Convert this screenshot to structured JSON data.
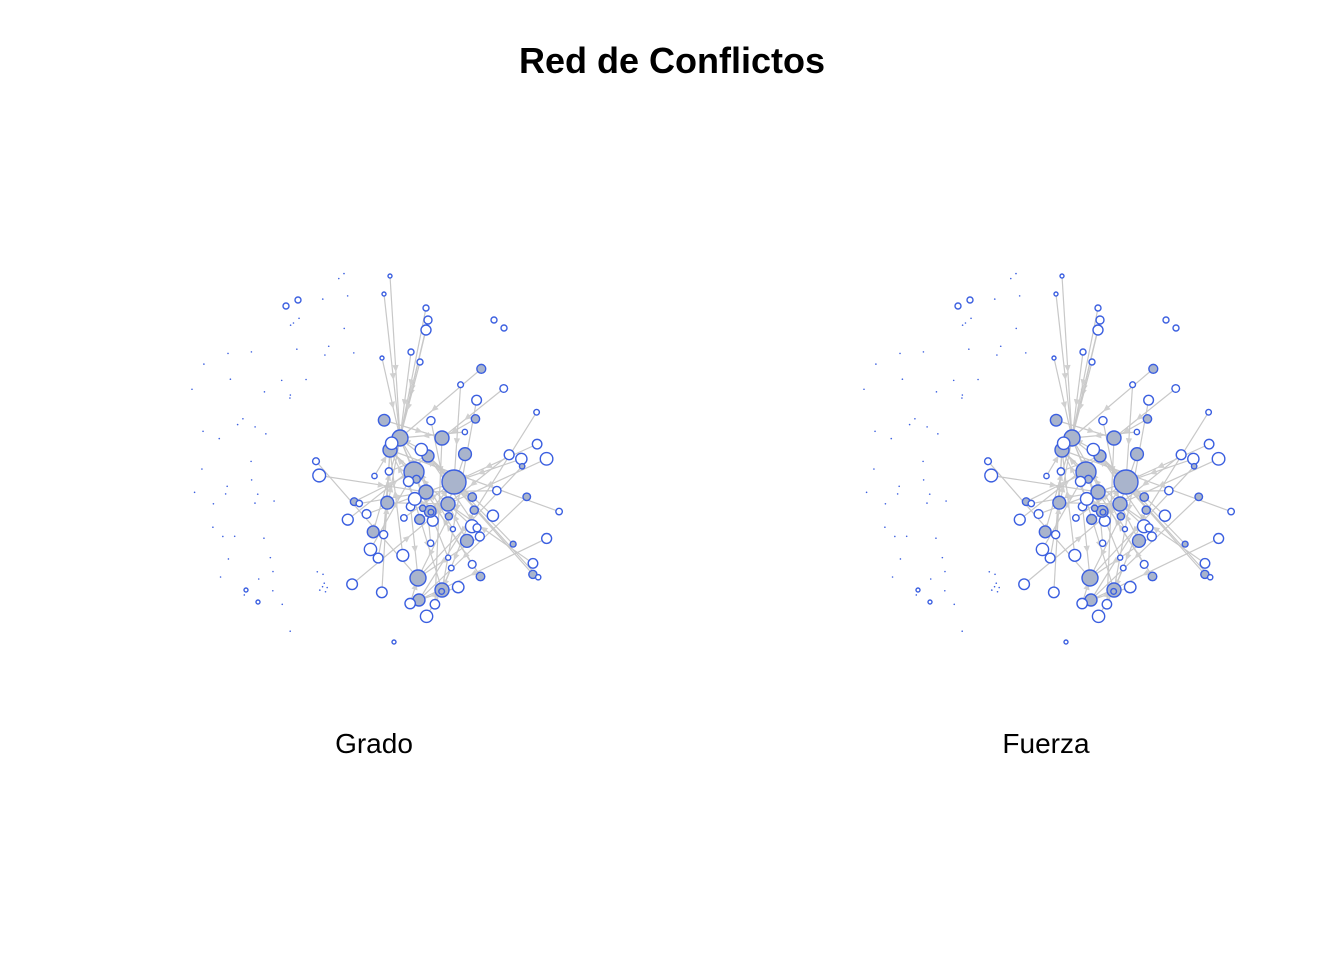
{
  "title": "Red de Conflictos",
  "panels": [
    {
      "label": "Grado"
    },
    {
      "label": "Fuerza"
    }
  ],
  "colors": {
    "node_stroke": "#3b5fe0",
    "node_fill": "#a9b4cc",
    "edge": "#c8c8c8",
    "arrow": "#d0d0d0"
  }
}
